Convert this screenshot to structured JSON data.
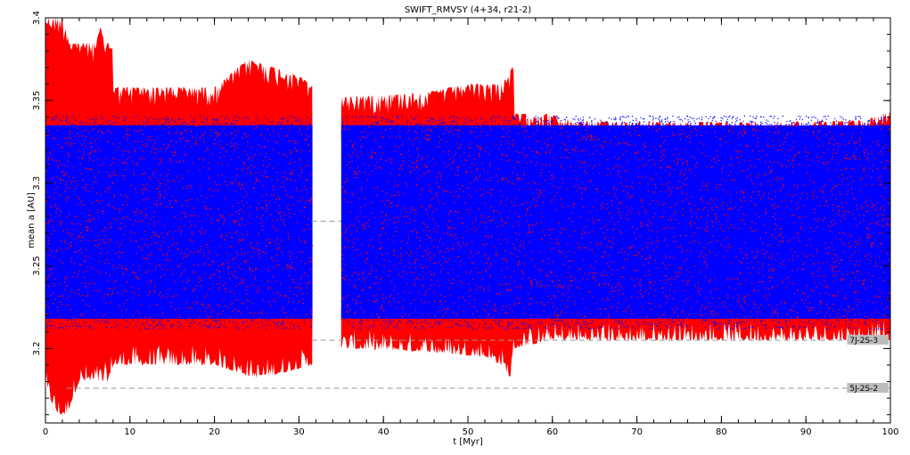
{
  "chart_data": {
    "type": "scatter",
    "title": "SWIFT_RMVSY (4+34, r21-2)",
    "xlabel": "t [Myr]",
    "ylabel": "mean a [AU]",
    "xlim": [
      0,
      100
    ],
    "ylim": [
      3.155,
      3.4
    ],
    "x_ticks": [
      "0",
      "10",
      "20",
      "30",
      "40",
      "50",
      "60",
      "70",
      "80",
      "90",
      "100"
    ],
    "y_ticks": [
      "3.2",
      "3.25",
      "3.3",
      "3.35",
      "3.4"
    ],
    "grid": false,
    "legend": "none",
    "series": [
      {
        "color": "#ff0000",
        "upper_envelope": [
          [
            0,
            3.4
          ],
          [
            2,
            3.4
          ],
          [
            3,
            3.385
          ],
          [
            6,
            3.385
          ],
          [
            6.5,
            3.395
          ],
          [
            7,
            3.385
          ],
          [
            8,
            3.385
          ],
          [
            8,
            3.358
          ],
          [
            15,
            3.358
          ],
          [
            20,
            3.358
          ],
          [
            24,
            3.375
          ],
          [
            27,
            3.37
          ],
          [
            30,
            3.365
          ],
          [
            31.5,
            3.36
          ],
          [
            35,
            3.352
          ],
          [
            45,
            3.355
          ],
          [
            50,
            3.36
          ],
          [
            54,
            3.36
          ],
          [
            55.5,
            3.372
          ],
          [
            55.5,
            3.342
          ],
          [
            60,
            3.342
          ],
          [
            61,
            3.338
          ],
          [
            70,
            3.337
          ],
          [
            85,
            3.337
          ],
          [
            97,
            3.338
          ],
          [
            100,
            3.344
          ]
        ],
        "lower_envelope": [
          [
            0,
            3.175
          ],
          [
            1.5,
            3.16
          ],
          [
            2.5,
            3.16
          ],
          [
            4,
            3.18
          ],
          [
            7.5,
            3.18
          ],
          [
            8,
            3.19
          ],
          [
            20,
            3.19
          ],
          [
            25,
            3.182
          ],
          [
            28,
            3.185
          ],
          [
            31.5,
            3.19
          ],
          [
            35,
            3.2
          ],
          [
            45,
            3.198
          ],
          [
            52,
            3.195
          ],
          [
            54,
            3.19
          ],
          [
            55,
            3.182
          ],
          [
            55.5,
            3.2
          ],
          [
            60,
            3.205
          ],
          [
            70,
            3.205
          ],
          [
            90,
            3.205
          ],
          [
            100,
            3.205
          ]
        ],
        "inner_upper": 3.337,
        "inner_lower": 3.215
      },
      {
        "color": "#0000ff",
        "upper": 3.335,
        "lower": 3.218
      }
    ],
    "gaps": [
      [
        31.6,
        35.0
      ]
    ],
    "reference_lines": [
      {
        "label": "",
        "y": 3.277,
        "x_start": 31.5,
        "x_end": 35
      },
      {
        "label": "7J-2S-3",
        "y": 3.205,
        "x_start": 31.5,
        "x_end": 100
      },
      {
        "label": "5J-2S-2",
        "y": 3.176,
        "x_start": 2.5,
        "x_end": 100
      }
    ],
    "annotations": [
      "7J-2S-3",
      "5J-2S-2"
    ]
  }
}
